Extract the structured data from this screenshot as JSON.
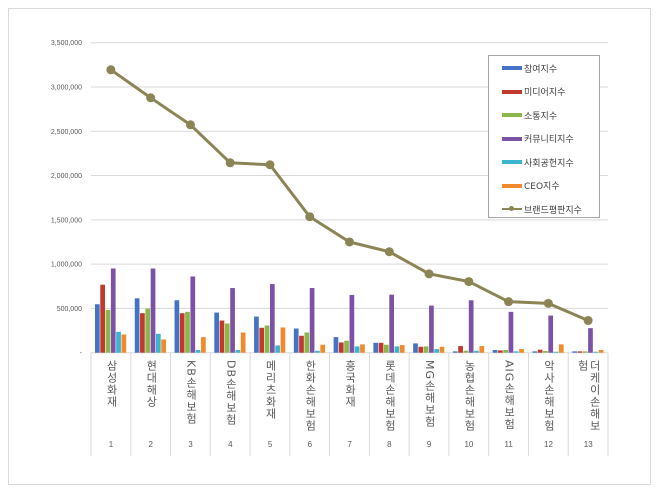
{
  "chart_data": {
    "type": "bar",
    "categories": [
      "삼성화재",
      "현대해상",
      "KB손해보험",
      "DB손해보험",
      "메리츠화재",
      "한화손해보험",
      "흥국화재",
      "롯데손해보험",
      "MG손해보험",
      "농협손해보험",
      "AIG손해보험",
      "악사손해보험",
      "더케이손해보험"
    ],
    "ranks": [
      "1",
      "2",
      "3",
      "4",
      "5",
      "6",
      "7",
      "8",
      "9",
      "10",
      "11",
      "12",
      "13"
    ],
    "ylim": [
      0,
      3500000
    ],
    "yticks": [
      "-",
      "500,000",
      "1,000,000",
      "1,500,000",
      "2,000,000",
      "2,500,000",
      "3,000,000",
      "3,500,000"
    ],
    "grid": true,
    "legend_position": "right",
    "series": [
      {
        "name": "참여지수",
        "type": "bar",
        "color": "#4472c4",
        "values": [
          547000,
          614000,
          592000,
          453000,
          408000,
          273000,
          176000,
          112000,
          105000,
          15000,
          30000,
          15000,
          15000
        ]
      },
      {
        "name": "미디어지수",
        "type": "bar",
        "color": "#c0392b",
        "values": [
          768000,
          446000,
          446000,
          363000,
          281000,
          191000,
          116000,
          112000,
          67000,
          75000,
          26000,
          34000,
          15000
        ]
      },
      {
        "name": "소통지수",
        "type": "bar",
        "color": "#8db64a",
        "values": [
          483000,
          498000,
          461000,
          330000,
          307000,
          228000,
          135000,
          90000,
          71000,
          22000,
          30000,
          19000,
          15000
        ]
      },
      {
        "name": "커뮤니티지수",
        "type": "bar",
        "color": "#7b52a6",
        "values": [
          951000,
          951000,
          861000,
          730000,
          775000,
          730000,
          652000,
          655000,
          532000,
          592000,
          461000,
          419000,
          277000
        ]
      },
      {
        "name": "사회공헌지수",
        "type": "bar",
        "color": "#3cb4d0",
        "values": [
          236000,
          213000,
          30000,
          30000,
          82000,
          22000,
          71000,
          71000,
          41000,
          22000,
          15000,
          11000,
          11000
        ]
      },
      {
        "name": "CEO지수",
        "type": "bar",
        "color": "#f08a2c",
        "values": [
          206000,
          150000,
          176000,
          228000,
          285000,
          90000,
          94000,
          86000,
          67000,
          75000,
          41000,
          94000,
          30000
        ]
      },
      {
        "name": "브랜드평판지수",
        "type": "line",
        "color": "#8b8455",
        "values": [
          3194000,
          2878000,
          2573000,
          2144000,
          2122000,
          1535000,
          1250000,
          1140000,
          890000,
          803000,
          576000,
          557000,
          363000
        ]
      }
    ]
  }
}
